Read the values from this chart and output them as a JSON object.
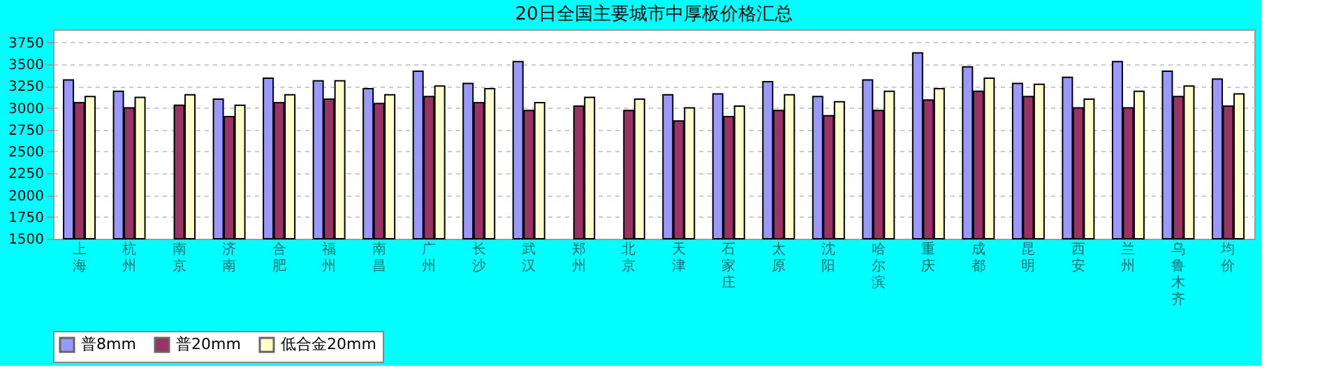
{
  "chart_data": {
    "type": "bar",
    "title": "20日全国主要城市中厚板价格汇总",
    "categories": [
      "上海",
      "杭州",
      "南京",
      "济南",
      "合肥",
      "福州",
      "南昌",
      "广州",
      "长沙",
      "武汉",
      "郑州",
      "北京",
      "天津",
      "石家庄",
      "太原",
      "沈阳",
      "哈尔滨",
      "重庆",
      "成都",
      "昆明",
      "西安",
      "兰州",
      "乌鲁木齐",
      "均价"
    ],
    "series": [
      {
        "name": "普8mm",
        "color": "#9999ff",
        "values": [
          3320,
          3190,
          null,
          3100,
          3340,
          3310,
          3220,
          3420,
          3280,
          3530,
          null,
          null,
          3150,
          3160,
          3300,
          3130,
          3320,
          3630,
          3470,
          3280,
          3350,
          3530,
          3420,
          3330
        ]
      },
      {
        "name": "普20mm",
        "color": "#993366",
        "values": [
          3060,
          3000,
          3030,
          2900,
          3060,
          3100,
          3050,
          3130,
          3060,
          2970,
          3020,
          2970,
          2850,
          2900,
          2970,
          2910,
          2970,
          3090,
          3190,
          3130,
          3000,
          3000,
          3130,
          3020
        ]
      },
      {
        "name": "低合金20mm",
        "color": "#ffffcc",
        "values": [
          3130,
          3120,
          3150,
          3030,
          3150,
          3310,
          3150,
          3250,
          3220,
          3060,
          3120,
          3100,
          3000,
          3020,
          3150,
          3070,
          3190,
          3220,
          3340,
          3270,
          3100,
          3190,
          3250,
          3160
        ]
      }
    ],
    "ylim": [
      1500,
      3900
    ],
    "yticks": [
      1500,
      1750,
      2000,
      2250,
      2500,
      2750,
      3000,
      3250,
      3500,
      3750
    ],
    "grid": "y",
    "legend": "bottom"
  }
}
